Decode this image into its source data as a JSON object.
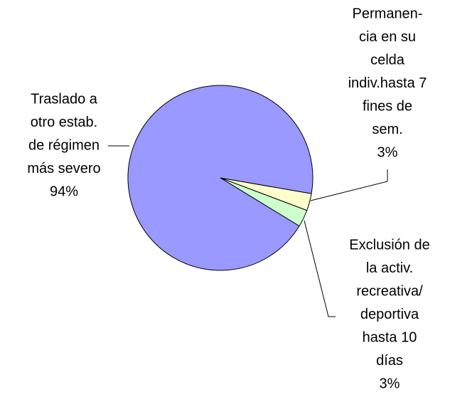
{
  "chart_data": {
    "type": "pie",
    "categories": [
      [
        "Permanen-",
        "cia en su",
        "celda",
        "indiv.hasta 7",
        "fines de",
        "sem."
      ],
      [
        "Exclusión de",
        "la activ.",
        "recreativa/",
        "deportiva",
        "hasta 10",
        "días"
      ],
      [
        "Traslado a",
        "otro estab.",
        "de régimen",
        "más severo"
      ]
    ],
    "values": [
      3,
      3,
      94
    ],
    "value_labels": [
      "3%",
      "3%",
      "94%"
    ],
    "colors": [
      "#ffffcc",
      "#ccffcc",
      "#9999ff"
    ]
  }
}
